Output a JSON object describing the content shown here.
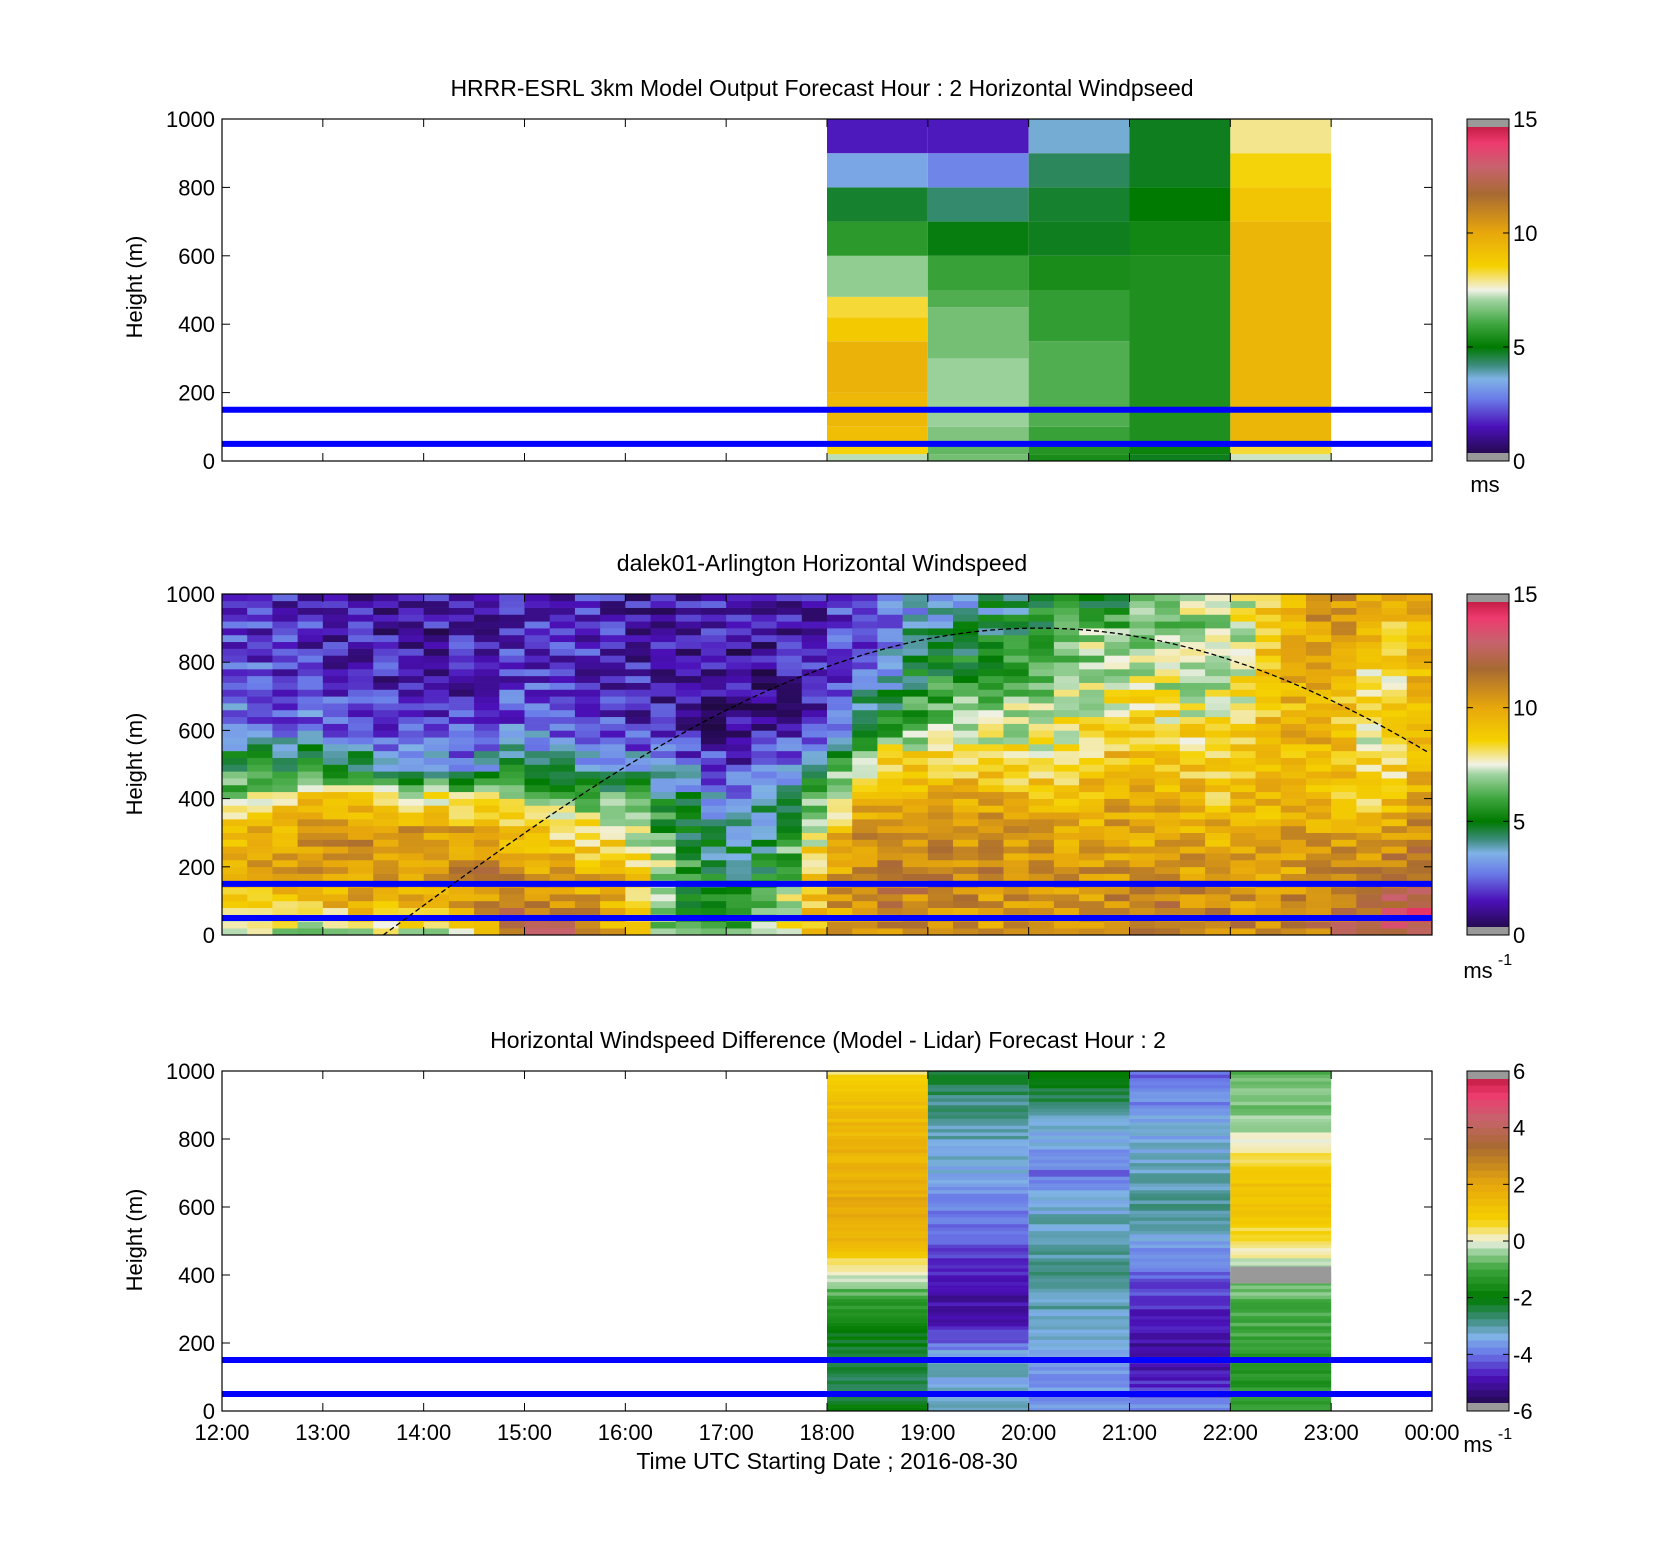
{
  "figure": {
    "colors": {
      "reference_lines": "#0000ff",
      "missing": "#999999",
      "background": "#ffffff"
    }
  },
  "chart_data": [
    {
      "type": "heatmap",
      "title": "HRRR-ESRL 3km Model Output   Forecast Hour : 2 Horizontal Windpseed",
      "ylabel": "Height (m)",
      "xlabel": "",
      "x_ticks": [
        "12:00",
        "13:00",
        "14:00",
        "15:00",
        "16:00",
        "17:00",
        "18:00",
        "19:00",
        "20:00",
        "21:00",
        "22:00",
        "23:00",
        "00:00"
      ],
      "show_x_tick_labels": false,
      "y_ticks": [
        "0",
        "200",
        "400",
        "600",
        "800",
        "1000"
      ],
      "xlim_hours": [
        12,
        24
      ],
      "ylim": [
        0,
        1000
      ],
      "colorbar": {
        "label": "ms",
        "ticks": [
          "0",
          "5",
          "10",
          "15"
        ],
        "range": [
          0,
          15
        ],
        "colormap": "speed"
      },
      "reference_lines_m": [
        50,
        150
      ],
      "cells": [
        {
          "t0": 18,
          "t1": 19,
          "levels": [
            {
              "z0": 0,
              "z1": 20,
              "v": 7.2
            },
            {
              "z0": 20,
              "z1": 50,
              "v": 8.5
            },
            {
              "z0": 50,
              "z1": 100,
              "v": 9.2
            },
            {
              "z0": 100,
              "z1": 200,
              "v": 9.4
            },
            {
              "z0": 200,
              "z1": 350,
              "v": 9.6
            },
            {
              "z0": 350,
              "z1": 420,
              "v": 8.8
            },
            {
              "z0": 420,
              "z1": 480,
              "v": 8.3
            },
            {
              "z0": 480,
              "z1": 600,
              "v": 6.9
            },
            {
              "z0": 600,
              "z1": 700,
              "v": 5.7
            },
            {
              "z0": 700,
              "z1": 800,
              "v": 4.7
            },
            {
              "z0": 800,
              "z1": 900,
              "v": 3.4
            },
            {
              "z0": 900,
              "z1": 1000,
              "v": 1.6
            }
          ]
        },
        {
          "t0": 19,
          "t1": 20,
          "levels": [
            {
              "z0": 0,
              "z1": 20,
              "v": 6.6
            },
            {
              "z0": 20,
              "z1": 50,
              "v": 6.4
            },
            {
              "z0": 50,
              "z1": 100,
              "v": 6.7
            },
            {
              "z0": 100,
              "z1": 300,
              "v": 7.0
            },
            {
              "z0": 300,
              "z1": 450,
              "v": 6.6
            },
            {
              "z0": 450,
              "z1": 500,
              "v": 6.2
            },
            {
              "z0": 500,
              "z1": 600,
              "v": 5.9
            },
            {
              "z0": 600,
              "z1": 700,
              "v": 4.9
            },
            {
              "z0": 700,
              "z1": 800,
              "v": 4.3
            },
            {
              "z0": 800,
              "z1": 900,
              "v": 2.9
            },
            {
              "z0": 900,
              "z1": 1000,
              "v": 1.6
            }
          ]
        },
        {
          "t0": 20,
          "t1": 21,
          "levels": [
            {
              "z0": 0,
              "z1": 20,
              "v": 5.4
            },
            {
              "z0": 20,
              "z1": 50,
              "v": 5.6
            },
            {
              "z0": 50,
              "z1": 100,
              "v": 5.9
            },
            {
              "z0": 100,
              "z1": 350,
              "v": 6.2
            },
            {
              "z0": 350,
              "z1": 500,
              "v": 5.8
            },
            {
              "z0": 500,
              "z1": 600,
              "v": 5.4
            },
            {
              "z0": 600,
              "z1": 700,
              "v": 4.8
            },
            {
              "z0": 700,
              "z1": 800,
              "v": 4.7
            },
            {
              "z0": 800,
              "z1": 900,
              "v": 4.4
            },
            {
              "z0": 900,
              "z1": 1000,
              "v": 3.7
            }
          ]
        },
        {
          "t0": 21,
          "t1": 22,
          "levels": [
            {
              "z0": 0,
              "z1": 20,
              "v": 4.8
            },
            {
              "z0": 20,
              "z1": 50,
              "v": 5.2
            },
            {
              "z0": 50,
              "z1": 600,
              "v": 5.5
            },
            {
              "z0": 600,
              "z1": 700,
              "v": 5.3
            },
            {
              "z0": 700,
              "z1": 800,
              "v": 5.0
            },
            {
              "z0": 800,
              "z1": 1000,
              "v": 4.8
            }
          ]
        },
        {
          "t0": 22,
          "t1": 23,
          "levels": [
            {
              "z0": 0,
              "z1": 20,
              "v": 7.3
            },
            {
              "z0": 20,
              "z1": 50,
              "v": 8.3
            },
            {
              "z0": 50,
              "z1": 700,
              "v": 9.5
            },
            {
              "z0": 700,
              "z1": 800,
              "v": 9.0
            },
            {
              "z0": 800,
              "z1": 900,
              "v": 8.5
            },
            {
              "z0": 900,
              "z1": 1000,
              "v": 7.9
            }
          ]
        }
      ]
    },
    {
      "type": "heatmap",
      "title": "dalek01-Arlington  Horizontal Windspeed",
      "ylabel": "Height (m)",
      "xlabel": "",
      "x_ticks": [
        "12:00",
        "13:00",
        "14:00",
        "15:00",
        "16:00",
        "17:00",
        "18:00",
        "19:00",
        "20:00",
        "21:00",
        "22:00",
        "23:00",
        "00:00"
      ],
      "show_x_tick_labels": false,
      "y_ticks": [
        "0",
        "200",
        "400",
        "600",
        "800",
        "1000"
      ],
      "xlim_hours": [
        12,
        24
      ],
      "ylim": [
        0,
        1000
      ],
      "colorbar": {
        "label": "ms",
        "label_superscript": "-1",
        "ticks": [
          "0",
          "5",
          "10",
          "15"
        ],
        "range": [
          0,
          15
        ],
        "colormap": "speed"
      },
      "reference_lines_m": [
        50,
        150
      ],
      "boundary_layer_curve": {
        "peak_hour": 20.1,
        "peak_height_m": 900,
        "half_width_hours": 6.5,
        "style": "dashed"
      },
      "profile_step_hours": 0.25,
      "profile_anchors": {
        "hours": [
          12.0,
          13.0,
          14.0,
          14.5,
          15.0,
          15.5,
          16.0,
          16.5,
          17.0,
          17.5,
          18.0,
          18.5,
          19.0,
          19.5,
          20.0,
          20.5,
          21.0,
          21.5,
          22.0,
          22.5,
          23.0,
          23.5,
          24.0
        ],
        "levels_m": [
          0,
          100,
          200,
          300,
          400,
          500,
          600,
          700,
          800,
          900,
          1000
        ],
        "values": [
          [
            7.0,
            9.0,
            9.5,
            9.5,
            7.0,
            5.0,
            3.0,
            2.5,
            2.5,
            2.0,
            1.8
          ],
          [
            7.0,
            9.5,
            10.5,
            10.5,
            9.0,
            5.0,
            2.8,
            2.2,
            1.8,
            1.6,
            1.6
          ],
          [
            7.0,
            10.0,
            10.5,
            10.5,
            8.0,
            3.5,
            2.0,
            1.5,
            1.4,
            1.3,
            1.3
          ],
          [
            8.0,
            10.5,
            11.0,
            10.0,
            8.0,
            3.0,
            2.2,
            1.8,
            1.7,
            1.5,
            1.4
          ],
          [
            13.5,
            11.0,
            10.5,
            9.0,
            7.0,
            5.0,
            2.8,
            2.2,
            2.0,
            1.8,
            1.6
          ],
          [
            12.0,
            10.5,
            9.5,
            8.5,
            6.5,
            4.0,
            2.2,
            2.0,
            1.8,
            1.6,
            1.5
          ],
          [
            9.0,
            9.5,
            9.5,
            8.0,
            6.0,
            3.5,
            2.0,
            1.8,
            1.6,
            1.6,
            1.5
          ],
          [
            6.0,
            5.5,
            6.0,
            5.5,
            4.5,
            3.0,
            1.5,
            1.2,
            1.2,
            1.5,
            1.4
          ],
          [
            5.5,
            5.0,
            4.5,
            4.0,
            3.0,
            1.8,
            0.9,
            1.0,
            1.2,
            1.4,
            1.4
          ],
          [
            7.0,
            6.5,
            5.5,
            4.5,
            3.5,
            2.5,
            1.3,
            1.0,
            1.2,
            1.5,
            1.5
          ],
          [
            10.0,
            10.0,
            10.0,
            9.0,
            7.0,
            5.0,
            2.5,
            1.8,
            1.6,
            1.8,
            1.6
          ],
          [
            10.5,
            11.0,
            11.0,
            11.0,
            10.0,
            8.5,
            6.0,
            4.0,
            2.5,
            2.5,
            2.5
          ],
          [
            11.0,
            11.0,
            11.0,
            10.5,
            10.0,
            9.0,
            7.0,
            6.0,
            5.0,
            4.0,
            3.0
          ],
          [
            10.0,
            10.5,
            11.0,
            10.5,
            10.0,
            8.5,
            7.0,
            6.5,
            5.5,
            4.5,
            4.0
          ],
          [
            10.0,
            10.5,
            10.5,
            10.0,
            9.5,
            8.5,
            7.5,
            7.0,
            6.0,
            5.0,
            4.5
          ],
          [
            10.0,
            10.5,
            10.5,
            10.0,
            9.5,
            8.5,
            8.0,
            7.5,
            7.0,
            6.5,
            5.0
          ],
          [
            10.5,
            11.0,
            10.5,
            10.0,
            10.0,
            9.5,
            9.0,
            8.0,
            7.5,
            6.5,
            5.0
          ],
          [
            11.0,
            11.0,
            10.5,
            10.0,
            9.5,
            9.0,
            8.5,
            7.5,
            7.0,
            6.5,
            8.5
          ],
          [
            11.0,
            10.5,
            10.0,
            9.5,
            9.0,
            8.5,
            8.0,
            7.5,
            7.0,
            7.0,
            7.0
          ],
          [
            10.5,
            10.5,
            10.0,
            10.0,
            9.5,
            9.5,
            9.5,
            9.5,
            9.5,
            9.5,
            9.5
          ],
          [
            11.5,
            11.0,
            10.5,
            10.0,
            9.5,
            9.5,
            9.5,
            9.5,
            10.0,
            10.5,
            11.0
          ],
          [
            12.5,
            12.0,
            11.0,
            10.0,
            8.5,
            8.0,
            7.5,
            7.5,
            8.0,
            9.0,
            9.5
          ],
          [
            14.0,
            13.5,
            12.0,
            11.0,
            10.0,
            9.5,
            10.5,
            10.5,
            10.0,
            9.5,
            9.5
          ]
        ]
      }
    },
    {
      "type": "heatmap",
      "title": "Horizontal Windspeed Difference (Model - Lidar) Forecast Hour : 2",
      "ylabel": "Height (m)",
      "xlabel": "Time UTC  Starting Date ; 2016-08-30",
      "x_ticks": [
        "12:00",
        "13:00",
        "14:00",
        "15:00",
        "16:00",
        "17:00",
        "18:00",
        "19:00",
        "20:00",
        "21:00",
        "22:00",
        "23:00",
        "00:00"
      ],
      "show_x_tick_labels": true,
      "y_ticks": [
        "0",
        "200",
        "400",
        "600",
        "800",
        "1000"
      ],
      "xlim_hours": [
        12,
        24
      ],
      "ylim": [
        0,
        1000
      ],
      "colorbar": {
        "label": "ms",
        "label_superscript": "-1",
        "ticks": [
          "-6",
          "-4",
          "-2",
          "0",
          "2",
          "4",
          "6"
        ],
        "range": [
          -6,
          6
        ],
        "colormap": "difference"
      },
      "reference_lines_m": [
        50,
        150
      ],
      "columns": [
        {
          "t0": 18,
          "t1": 19,
          "profile": [
            {
              "z": 0,
              "v": -2.0
            },
            {
              "z": 100,
              "v": -2.6
            },
            {
              "z": 200,
              "v": -2.2
            },
            {
              "z": 300,
              "v": -1.4
            },
            {
              "z": 380,
              "v": -0.4
            },
            {
              "z": 440,
              "v": 0.4
            },
            {
              "z": 500,
              "v": 1.6
            },
            {
              "z": 600,
              "v": 1.9
            },
            {
              "z": 700,
              "v": 1.7
            },
            {
              "z": 800,
              "v": 1.6
            },
            {
              "z": 900,
              "v": 1.3
            },
            {
              "z": 1000,
              "v": 0.5
            }
          ]
        },
        {
          "t0": 19,
          "t1": 20,
          "profile": [
            {
              "z": 0,
              "v": -3.1
            },
            {
              "z": 100,
              "v": -3.3
            },
            {
              "z": 150,
              "v": -3.2
            },
            {
              "z": 250,
              "v": -4.8
            },
            {
              "z": 350,
              "v": -5.0
            },
            {
              "z": 450,
              "v": -4.5
            },
            {
              "z": 550,
              "v": -4.0
            },
            {
              "z": 650,
              "v": -3.6
            },
            {
              "z": 750,
              "v": -3.3
            },
            {
              "z": 820,
              "v": -3.1
            },
            {
              "z": 900,
              "v": -2.8
            },
            {
              "z": 1000,
              "v": -2.3
            }
          ]
        },
        {
          "t0": 20,
          "t1": 21,
          "profile": [
            {
              "z": 0,
              "v": -3.8
            },
            {
              "z": 100,
              "v": -3.6
            },
            {
              "z": 250,
              "v": -3.3
            },
            {
              "z": 380,
              "v": -2.8
            },
            {
              "z": 450,
              "v": -3.0
            },
            {
              "z": 520,
              "v": -3.1
            },
            {
              "z": 620,
              "v": -3.3
            },
            {
              "z": 700,
              "v": -4.0
            },
            {
              "z": 800,
              "v": -3.4
            },
            {
              "z": 900,
              "v": -2.7
            },
            {
              "z": 1000,
              "v": -1.8
            }
          ]
        },
        {
          "t0": 21,
          "t1": 22,
          "profile": [
            {
              "z": 0,
              "v": -3.6
            },
            {
              "z": 100,
              "v": -4.8
            },
            {
              "z": 200,
              "v": -5.0
            },
            {
              "z": 300,
              "v": -4.6
            },
            {
              "z": 400,
              "v": -4.2
            },
            {
              "z": 480,
              "v": -3.6
            },
            {
              "z": 550,
              "v": -2.9
            },
            {
              "z": 650,
              "v": -3.0
            },
            {
              "z": 750,
              "v": -3.2
            },
            {
              "z": 850,
              "v": -3.5
            },
            {
              "z": 950,
              "v": -4.0
            },
            {
              "z": 1000,
              "v": -4.1
            }
          ]
        },
        {
          "t0": 22,
          "t1": 23,
          "profile": [
            {
              "z": 0,
              "v": -1.2
            },
            {
              "z": 100,
              "v": -1.4
            },
            {
              "z": 200,
              "v": -1.1
            },
            {
              "z": 300,
              "v": -0.9
            },
            {
              "z": 400,
              "v": -0.5
            },
            {
              "z": 500,
              "v": 0.4
            },
            {
              "z": 600,
              "v": 1.3
            },
            {
              "z": 700,
              "v": 1.0
            },
            {
              "z": 800,
              "v": -0.1
            },
            {
              "z": 900,
              "v": -0.6
            },
            {
              "z": 1000,
              "v": -0.8
            }
          ]
        }
      ],
      "missing_bands": [
        {
          "t0": 22,
          "t1": 23,
          "z0": 375,
          "z1": 425
        }
      ]
    }
  ]
}
